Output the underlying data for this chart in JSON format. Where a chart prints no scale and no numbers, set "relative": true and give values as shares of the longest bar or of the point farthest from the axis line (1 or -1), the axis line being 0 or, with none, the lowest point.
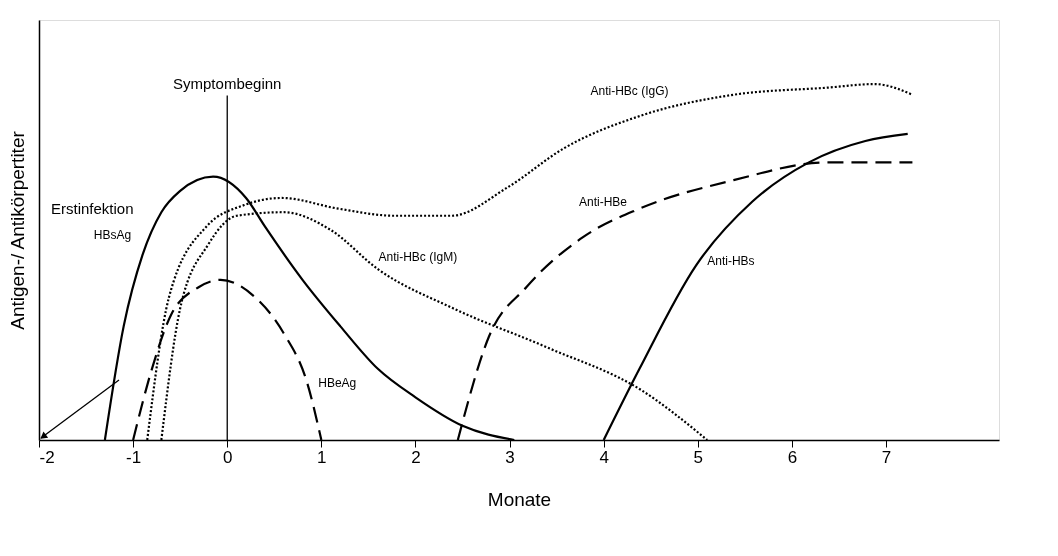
{
  "chart_data": {
    "type": "line",
    "relative": true,
    "xlabel": "Monate",
    "ylabel": "Antigen-/ Antikörpertiter",
    "xlim": [
      -2,
      8.2
    ],
    "xticks": [
      -2,
      -1,
      0,
      1,
      2,
      3,
      4,
      5,
      6,
      7
    ],
    "marker": "none",
    "ref_lines": [
      {
        "axis": "x",
        "value": 0,
        "label": "Symptombeginn",
        "color": "#000000",
        "line_style": "solid"
      }
    ],
    "annotations": [
      "Erstinfektion"
    ],
    "series": [
      {
        "name": "HBsAg",
        "color": "#000000",
        "line_style": "solid",
        "x": [
          -1.3,
          -1.1,
          -0.9,
          -0.7,
          -0.5,
          -0.15,
          0.2,
          0.4,
          0.8,
          1.2,
          1.6,
          2.0,
          2.5,
          3.05
        ],
        "values": [
          0,
          0.32,
          0.52,
          0.64,
          0.7,
          0.74,
          0.68,
          0.6,
          0.45,
          0.32,
          0.2,
          0.12,
          0.04,
          0
        ]
      },
      {
        "name": "HBeAg",
        "color": "#000000",
        "line_style": "dashed",
        "x": [
          -1.0,
          -0.8,
          -0.6,
          -0.3,
          -0.07,
          0.3,
          0.6,
          0.85,
          1.0
        ],
        "values": [
          0,
          0.2,
          0.35,
          0.43,
          0.45,
          0.4,
          0.3,
          0.16,
          0
        ]
      },
      {
        "name": "Anti-HBc (IgM)",
        "color": "#000000",
        "line_style": "dotted",
        "x": [
          -0.7,
          -0.5,
          -0.2,
          0.1,
          0.6,
          1.1,
          1.6,
          2.4,
          3.4,
          4.4,
          5.1
        ],
        "values": [
          0,
          0.37,
          0.55,
          0.63,
          0.64,
          0.59,
          0.48,
          0.37,
          0.26,
          0.14,
          0
        ]
      },
      {
        "name": "Anti-HBc (IgG)",
        "color": "#000000",
        "line_style": "dotted",
        "x": [
          -0.85,
          -0.62,
          -0.22,
          0.18,
          0.58,
          1.18,
          1.78,
          2.38,
          2.98,
          3.58,
          4.38,
          5.38,
          6.38,
          6.88,
          7.28
        ],
        "values": [
          0,
          0.4,
          0.6,
          0.66,
          0.68,
          0.65,
          0.63,
          0.63,
          0.71,
          0.82,
          0.91,
          0.97,
          0.99,
          1.0,
          0.97
        ]
      },
      {
        "name": "Anti-HBe",
        "color": "#000000",
        "line_style": "dashed",
        "x": [
          2.45,
          2.78,
          3.18,
          3.78,
          4.38,
          5.38,
          6.38,
          7.28
        ],
        "values": [
          0,
          0.29,
          0.43,
          0.57,
          0.65,
          0.73,
          0.78,
          0.78
        ]
      },
      {
        "name": "Anti-HBs",
        "color": "#000000",
        "line_style": "solid",
        "x": [
          4.0,
          4.38,
          4.98,
          5.58,
          6.18,
          6.78,
          7.23
        ],
        "values": [
          0,
          0.2,
          0.49,
          0.67,
          0.78,
          0.84,
          0.86
        ]
      }
    ]
  }
}
